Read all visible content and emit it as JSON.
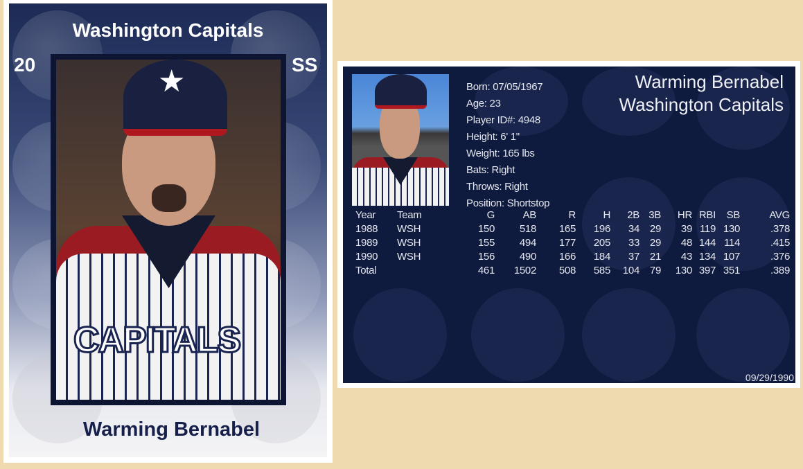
{
  "front_card": {
    "team": "Washington Capitals",
    "number": "20",
    "position": "SS",
    "name": "Warming Bernabel",
    "jersey_text": "CAPITALS"
  },
  "back_card": {
    "name": "Warming Bernabel",
    "team": "Washington Capitals",
    "bio": [
      "Born: 07/05/1967",
      "Age: 23",
      "Player ID#: 4948",
      "Height: 6' 1\"",
      "Weight: 165 lbs",
      "Bats: Right",
      "Throws: Right",
      "Position: Shortstop"
    ],
    "stats": {
      "headers": [
        "Year",
        "Team",
        "G",
        "AB",
        "R",
        "H",
        "2B",
        "3B",
        "HR",
        "RBI",
        "SB",
        "AVG"
      ],
      "rows": [
        [
          "1988",
          "WSH",
          "150",
          "518",
          "165",
          "196",
          "34",
          "29",
          "39",
          "119",
          "130",
          ".378"
        ],
        [
          "1989",
          "WSH",
          "155",
          "494",
          "177",
          "205",
          "33",
          "29",
          "48",
          "144",
          "114",
          ".415"
        ],
        [
          "1990",
          "WSH",
          "156",
          "490",
          "166",
          "184",
          "37",
          "21",
          "43",
          "134",
          "107",
          ".376"
        ],
        [
          "Total",
          "",
          "461",
          "1502",
          "508",
          "585",
          "104",
          "79",
          "130",
          "397",
          "351",
          ".389"
        ]
      ]
    },
    "date": "09/29/1990"
  },
  "colors": {
    "background": "#efdab0",
    "navy": "#0f1a3f",
    "text_dark": "#16204a"
  }
}
